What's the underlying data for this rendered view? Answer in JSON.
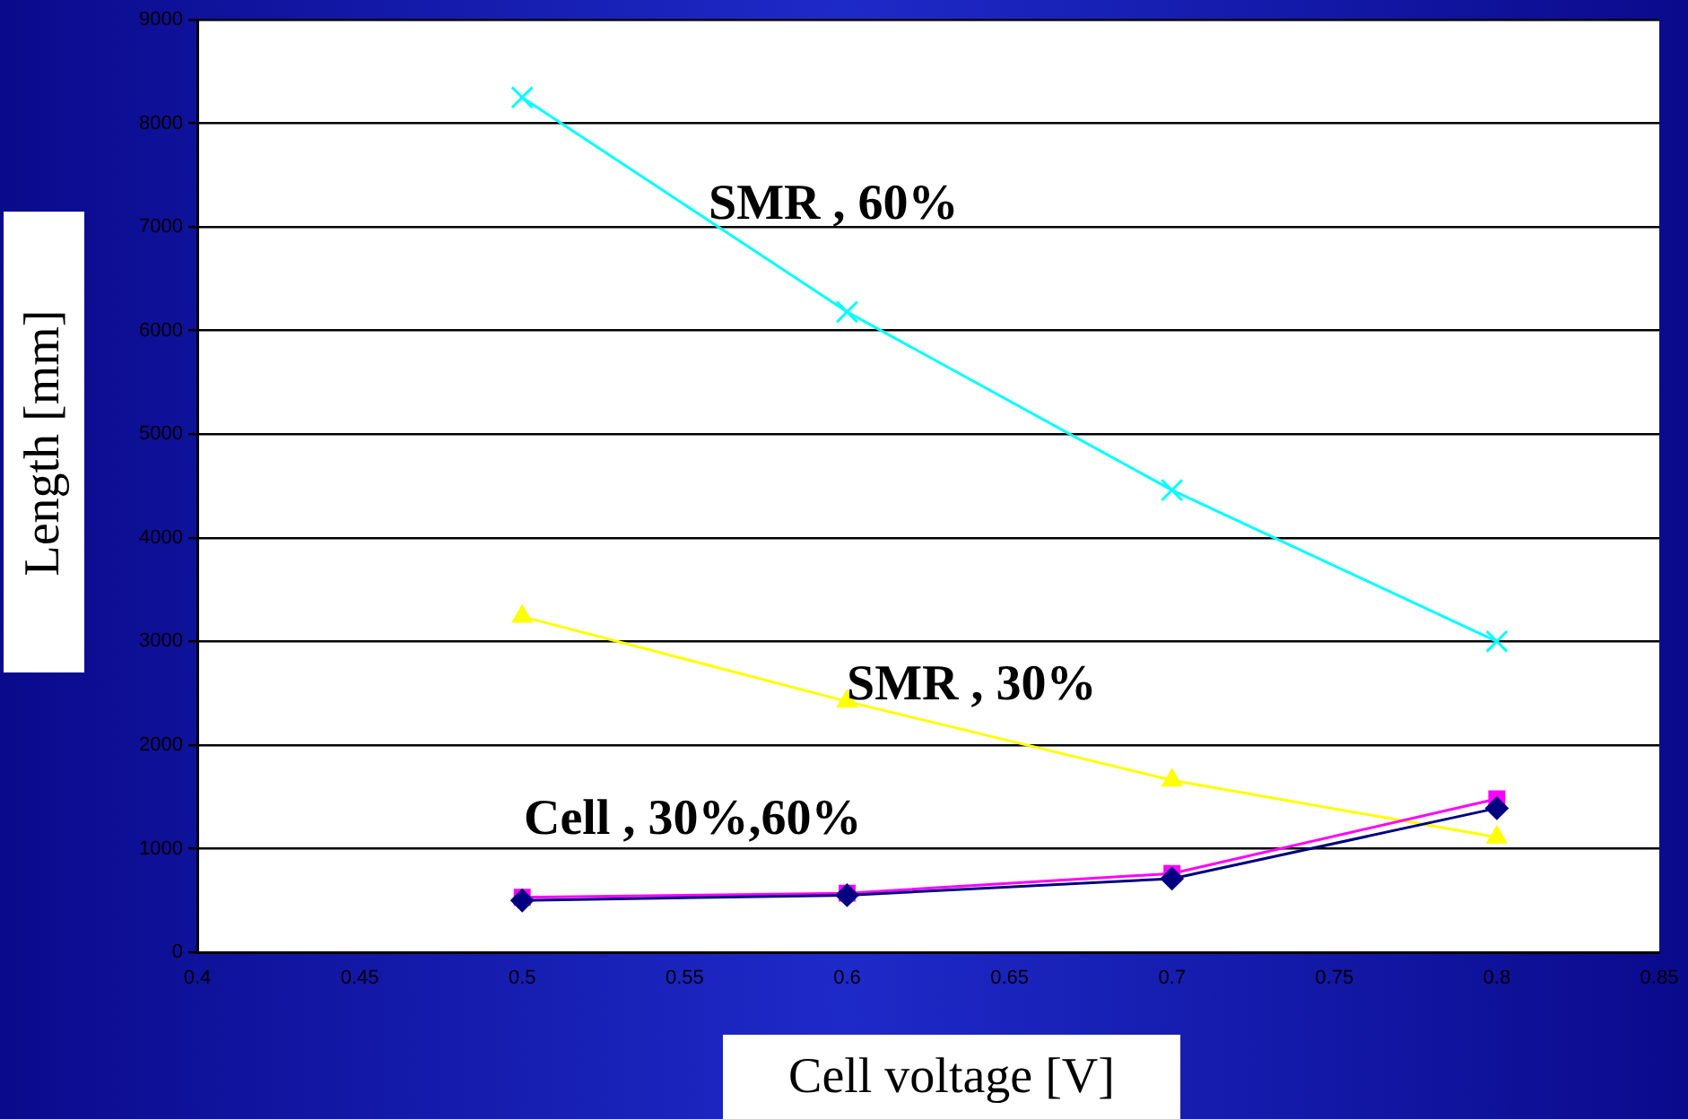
{
  "chart_data": {
    "type": "line",
    "xlabel": "Cell voltage [V]",
    "ylabel": "Length [mm]",
    "x": [
      0.5,
      0.6,
      0.7,
      0.8
    ],
    "series": [
      {
        "color": "#000080",
        "values": [
          500,
          550,
          710,
          1390
        ],
        "marker": "diamond"
      },
      {
        "color": "#ff00ff",
        "values": [
          530,
          570,
          760,
          1480
        ],
        "marker": "square"
      },
      {
        "color": "#ffff00",
        "values": [
          3240,
          2420,
          1660,
          1110
        ],
        "marker": "triangle"
      },
      {
        "color": "#00ffff",
        "values": [
          8250,
          6180,
          4460,
          3000
        ],
        "marker": "cross"
      }
    ],
    "xlim": [
      0.4,
      0.85
    ],
    "xticks": [
      0.4,
      0.45,
      0.5,
      0.55,
      0.6,
      0.65,
      0.7,
      0.75,
      0.8,
      0.85
    ],
    "ylim": [
      0,
      9000
    ],
    "yticks": [
      0,
      1000,
      2000,
      3000,
      4000,
      5000,
      6000,
      7000,
      8000,
      9000
    ],
    "grid": "y",
    "legend": false,
    "line_style": "solid",
    "annotations": [
      "SMR , 60%",
      "SMR , 30%",
      "Cell , 30%,60%"
    ]
  }
}
